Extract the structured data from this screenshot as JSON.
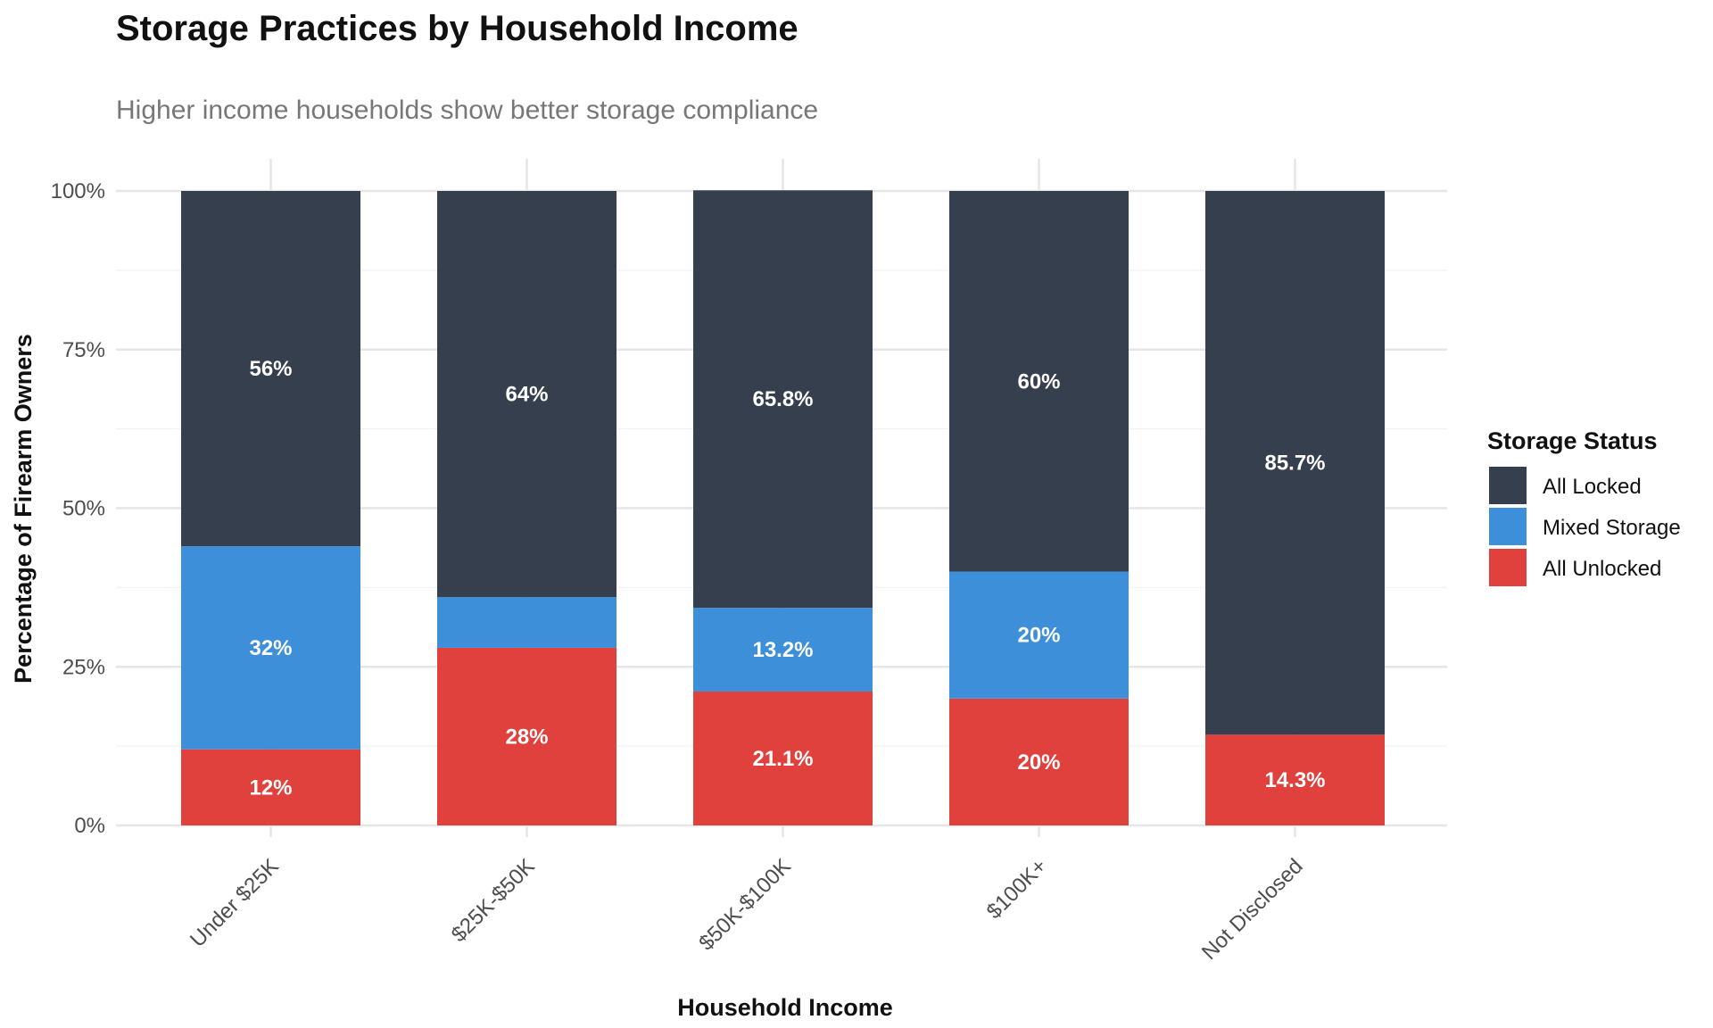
{
  "chart_data": {
    "type": "bar",
    "stacked": true,
    "title": "Storage Practices by Household Income",
    "subtitle": "Higher income households show better storage compliance",
    "xlabel": "Household Income",
    "ylabel": "Percentage of Firearm Owners",
    "categories": [
      "Under $25K",
      "$25K-$50K",
      "$50K-$100K",
      "$100K+",
      "Not Disclosed"
    ],
    "series": [
      {
        "name": "All Unlocked",
        "color": "#e0413c",
        "values": [
          12,
          28,
          21.1,
          20,
          14.3
        ],
        "labels": [
          "12%",
          "28%",
          "21.1%",
          "20%",
          "14.3%"
        ]
      },
      {
        "name": "Mixed Storage",
        "color": "#3d8fd9",
        "values": [
          32,
          8,
          13.2,
          20,
          0
        ],
        "labels": [
          "32%",
          "",
          "13.2%",
          "20%",
          ""
        ]
      },
      {
        "name": "All Locked",
        "color": "#363f4e",
        "values": [
          56,
          64,
          65.8,
          60,
          85.7
        ],
        "labels": [
          "56%",
          "64%",
          "65.8%",
          "60%",
          "85.7%"
        ]
      }
    ],
    "ylim": [
      0,
      100
    ],
    "yticks": [
      0,
      25,
      50,
      75,
      100
    ],
    "ytick_labels": [
      "0%",
      "25%",
      "50%",
      "75%",
      "100%"
    ],
    "legend": {
      "title": "Storage Status",
      "position": "right",
      "order": [
        "All Locked",
        "Mixed Storage",
        "All Unlocked"
      ]
    },
    "grid": true
  }
}
